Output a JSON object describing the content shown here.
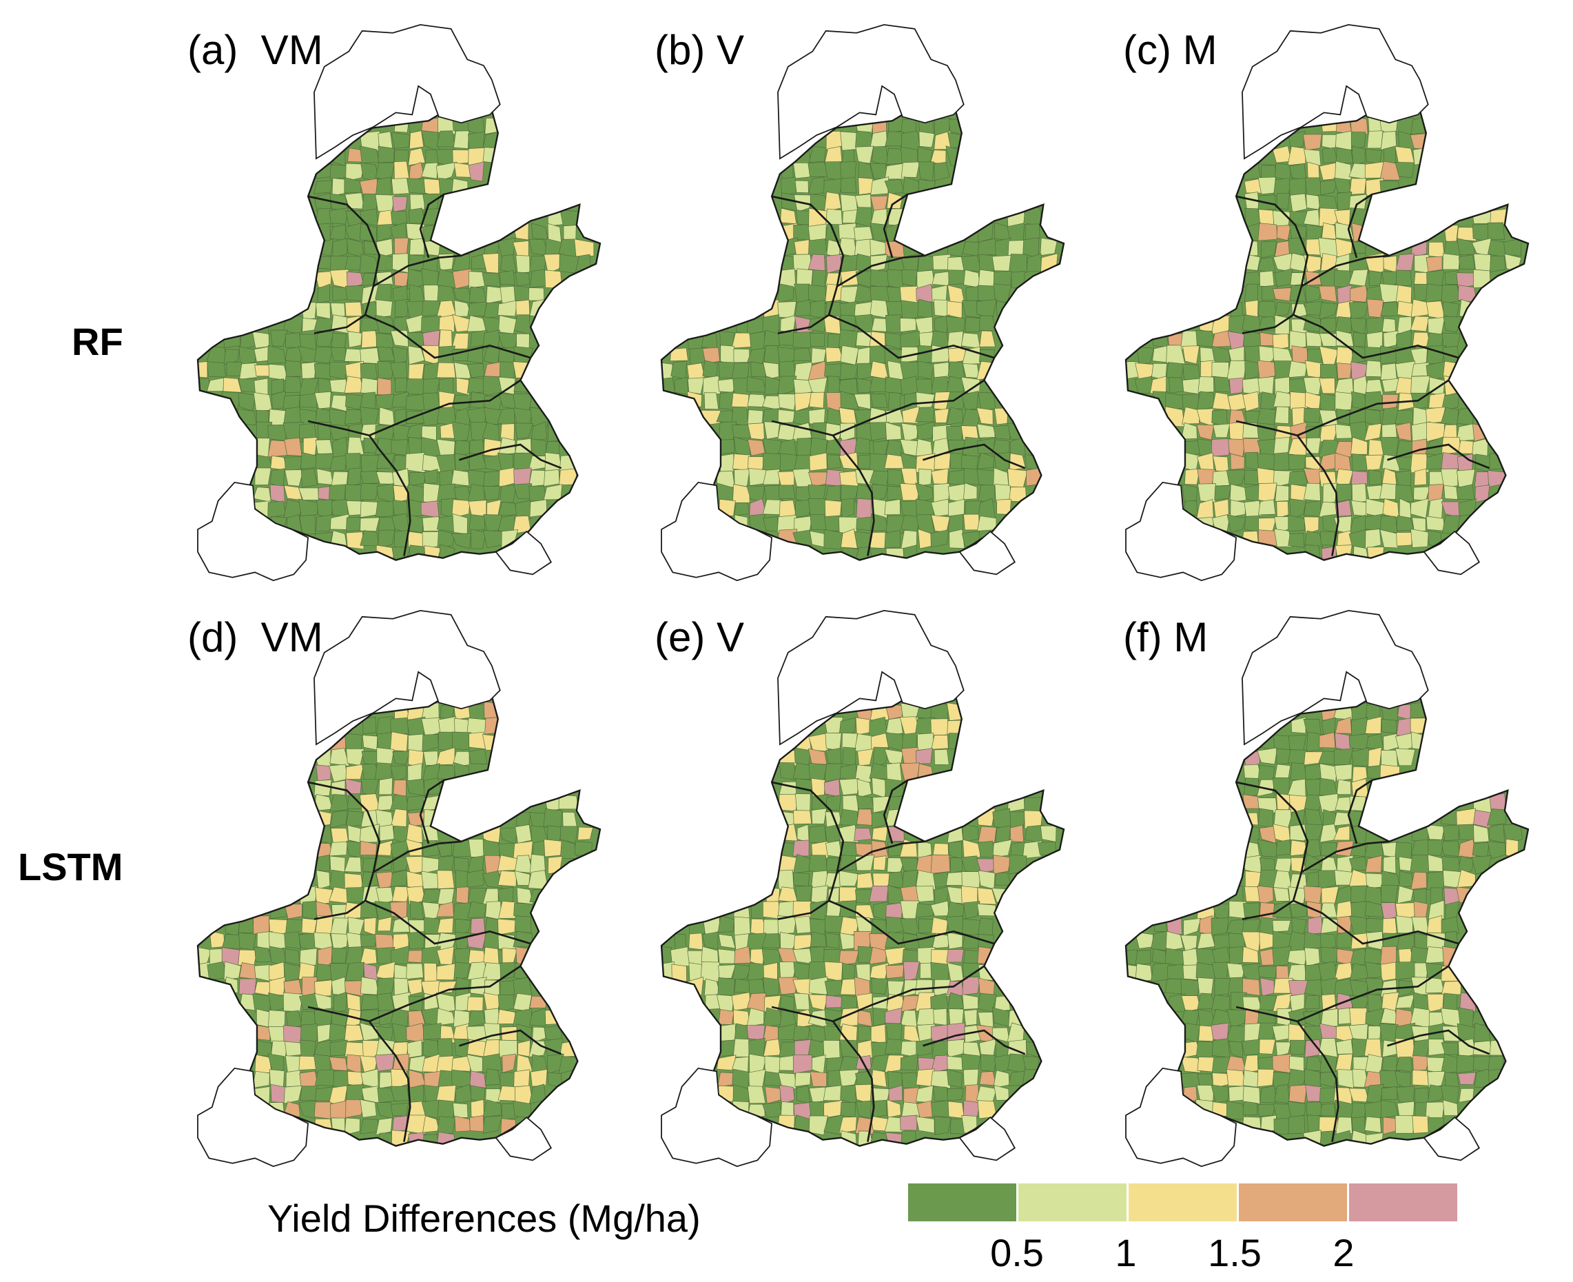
{
  "rows": [
    {
      "label": "RF"
    },
    {
      "label": "LSTM"
    }
  ],
  "panels": [
    {
      "id": "a",
      "label": "(a)  VM",
      "model": "RF",
      "variant": "VM"
    },
    {
      "id": "b",
      "label": "(b) V",
      "model": "RF",
      "variant": "V"
    },
    {
      "id": "c",
      "label": "(c) M",
      "model": "RF",
      "variant": "M"
    },
    {
      "id": "d",
      "label": "(d)  VM",
      "model": "LSTM",
      "variant": "VM"
    },
    {
      "id": "e",
      "label": "(e) V",
      "model": "LSTM",
      "variant": "V"
    },
    {
      "id": "f",
      "label": "(f) M",
      "model": "LSTM",
      "variant": "M"
    }
  ],
  "legend": {
    "title": "Yield Differences (Mg/ha)",
    "classes": [
      {
        "range": "< 0.5",
        "color": "#6b9a4e"
      },
      {
        "range": "0.5 – 1",
        "color": "#d6e39a"
      },
      {
        "range": "1 – 1.5",
        "color": "#f3df8e"
      },
      {
        "range": "1.5 – 2",
        "color": "#e2a97a"
      },
      {
        "range": "> 2",
        "color": "#d49aa0"
      }
    ],
    "ticks": [
      "0.5",
      "1",
      "1.5",
      "2"
    ]
  }
}
